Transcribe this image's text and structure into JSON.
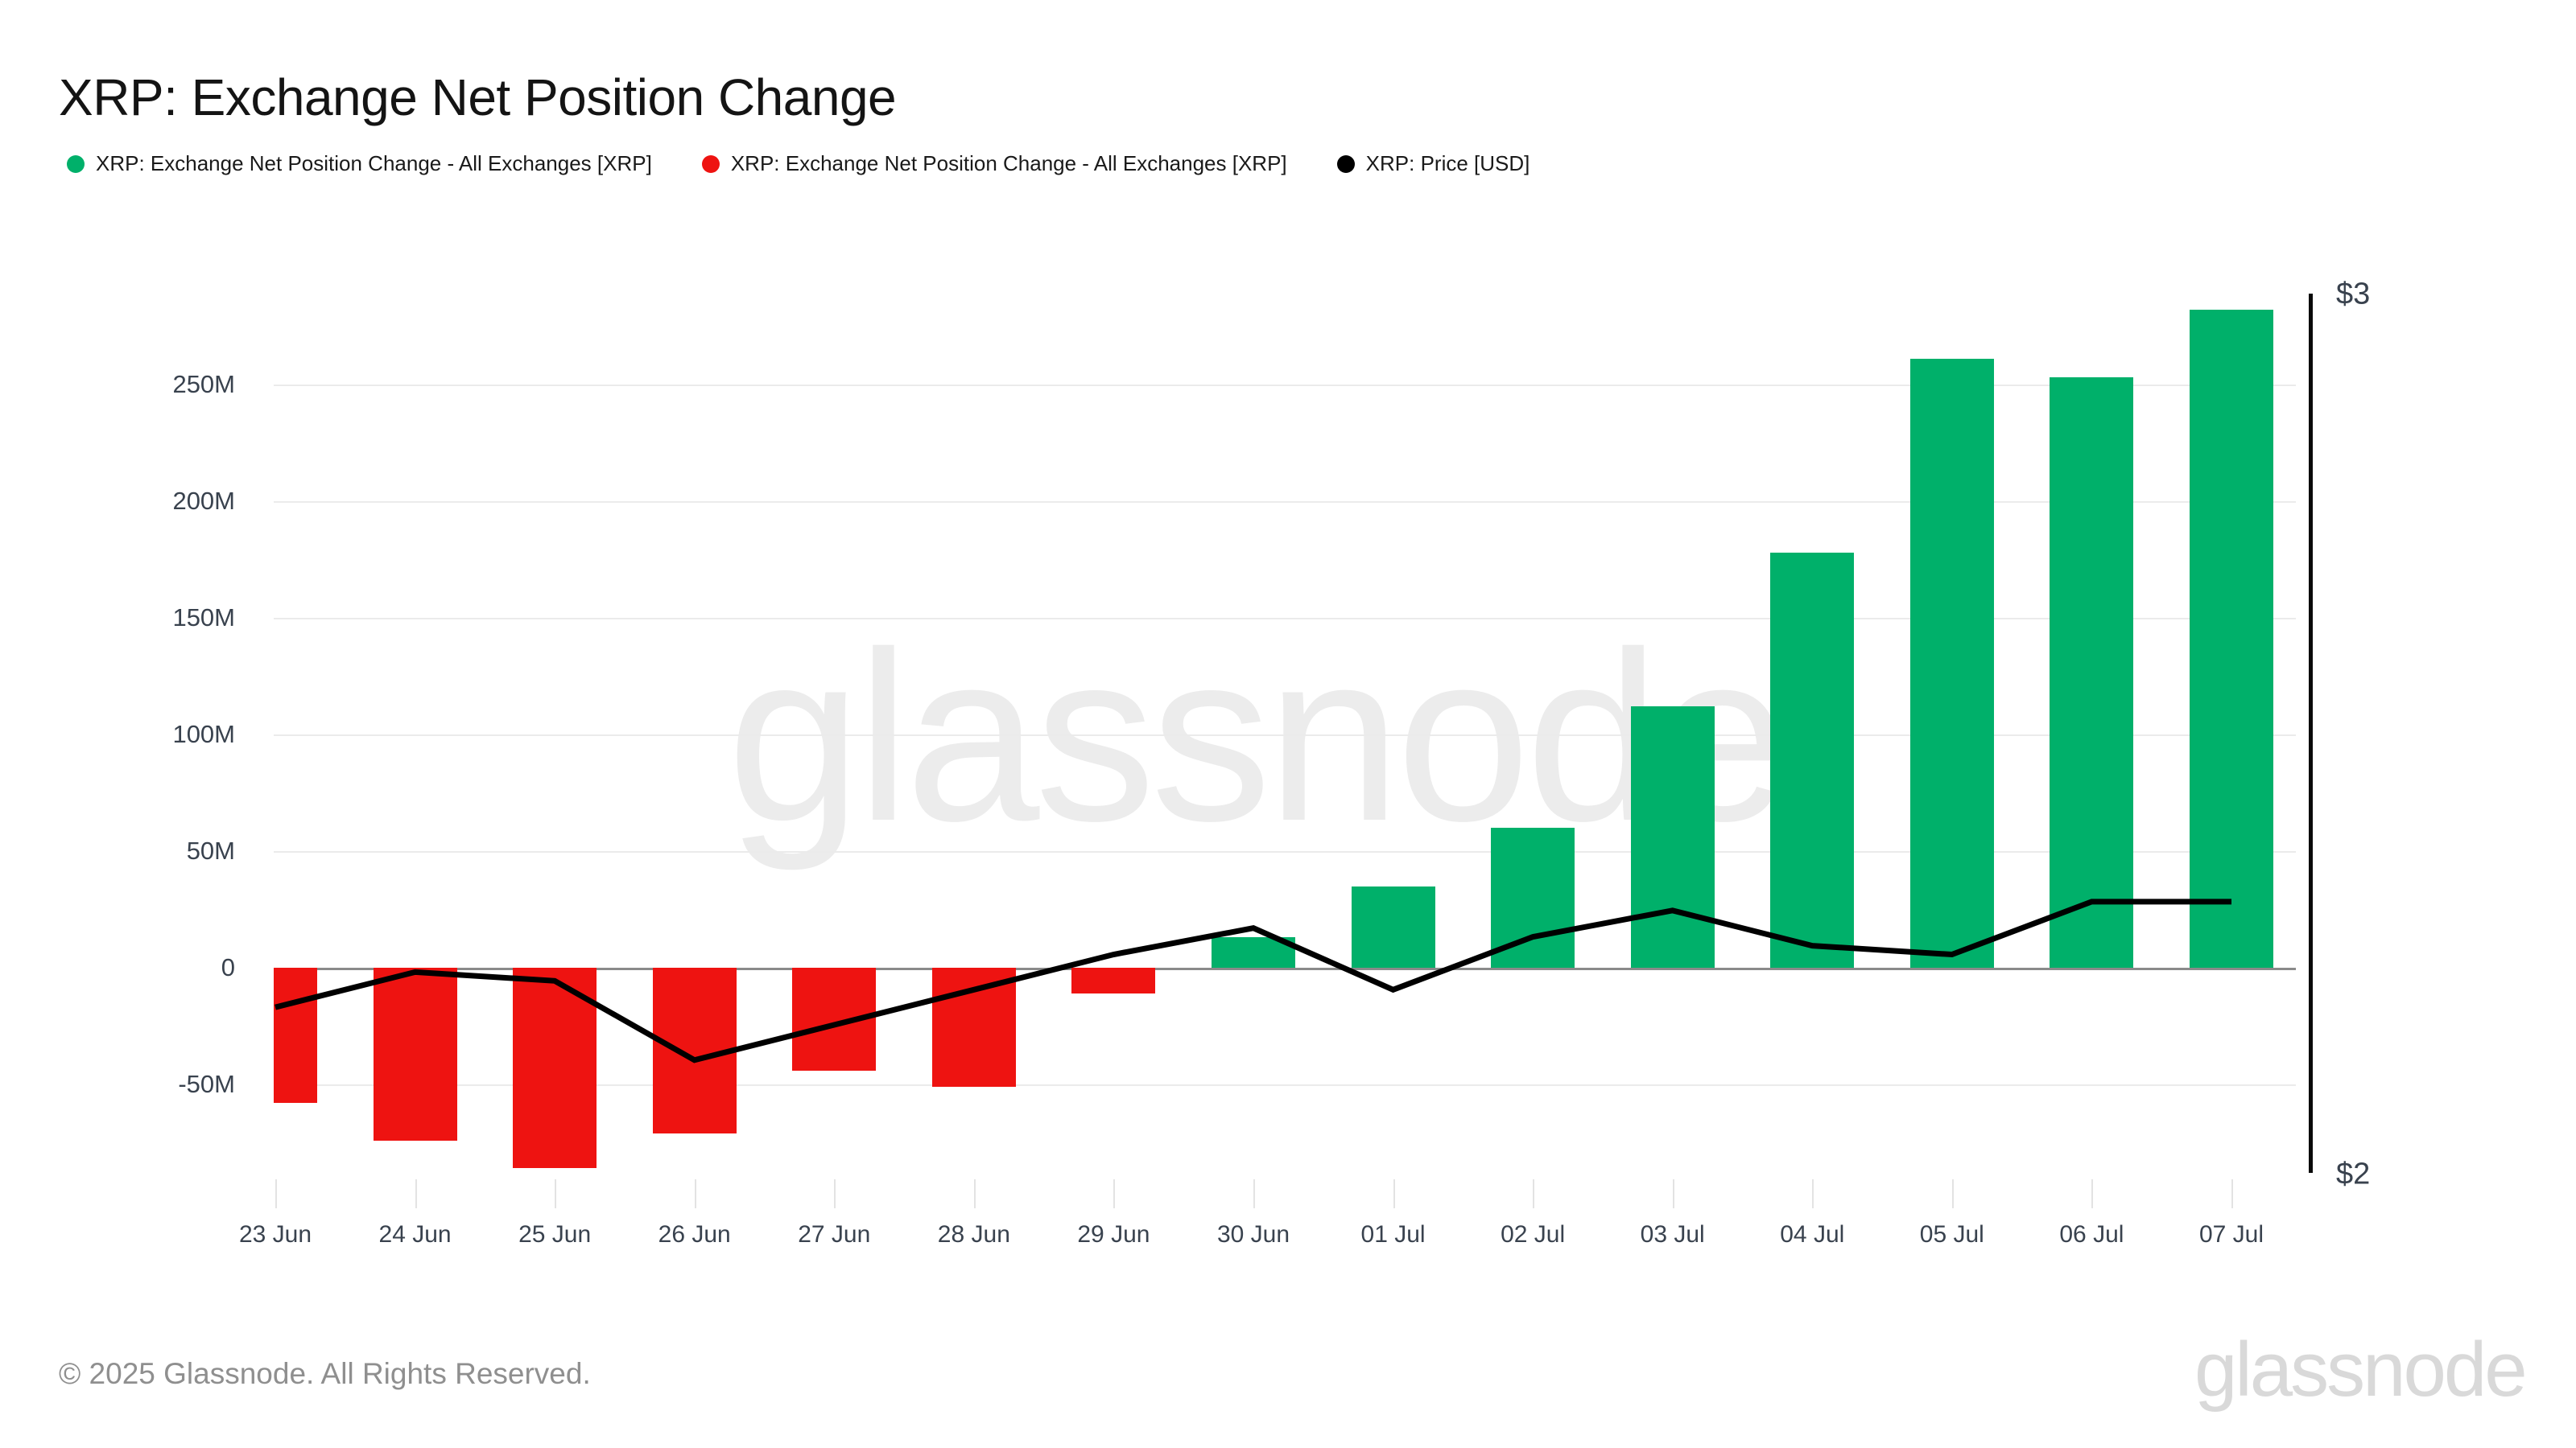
{
  "title": "XRP: Exchange Net Position Change",
  "legend": {
    "items": [
      {
        "label": "XRP: Exchange Net Position Change - All Exchanges [XRP]",
        "color": "#00b06a"
      },
      {
        "label": "XRP: Exchange Net Position Change - All Exchanges [XRP]",
        "color": "#ee1311"
      },
      {
        "label": "XRP: Price [USD]",
        "color": "#000000"
      }
    ]
  },
  "watermark": "glassnode",
  "footer": {
    "copyright": "© 2025 Glassnode. All Rights Reserved.",
    "logo": "glassnode"
  },
  "colors": {
    "positive_bar": "#00b06a",
    "negative_bar": "#ee1311",
    "price_line": "#000000",
    "gridline": "#ebebeb",
    "zero_line": "#8a8a8a",
    "axis_text": "#39424e",
    "background": "#ffffff"
  },
  "chart_data": {
    "type": "bar",
    "title": "XRP: Exchange Net Position Change",
    "categories": [
      "23 Jun",
      "24 Jun",
      "25 Jun",
      "26 Jun",
      "27 Jun",
      "28 Jun",
      "29 Jun",
      "30 Jun",
      "01 Jul",
      "02 Jul",
      "03 Jul",
      "04 Jul",
      "05 Jul",
      "06 Jul",
      "07 Jul"
    ],
    "series": [
      {
        "name": "XRP: Exchange Net Position Change - All Exchanges [XRP]",
        "type": "bar",
        "unit": "XRP (millions)",
        "values": [
          -58,
          -74,
          -86,
          -71,
          -44,
          -51,
          -11,
          13,
          35,
          60,
          112,
          178,
          261,
          253,
          282
        ],
        "positive_color": "#00b06a",
        "negative_color": "#ee1311"
      },
      {
        "name": "XRP: Price [USD]",
        "type": "line",
        "unit": "USD",
        "values": [
          2.19,
          2.23,
          2.22,
          2.13,
          2.17,
          2.21,
          2.25,
          2.28,
          2.21,
          2.27,
          2.3,
          2.26,
          2.25,
          2.31,
          2.31
        ],
        "color": "#000000"
      }
    ],
    "left_axis": {
      "tick_labels": [
        "250M",
        "200M",
        "150M",
        "100M",
        "50M",
        "0",
        "-50M"
      ],
      "tick_values": [
        250,
        200,
        150,
        100,
        50,
        0,
        -50
      ],
      "unit": "M (XRP)",
      "ylim": [
        -110,
        300
      ]
    },
    "right_axis": {
      "tick_labels": [
        "$3",
        "$2"
      ],
      "tick_values": [
        3,
        2
      ],
      "min": 2,
      "max": 3
    },
    "grid": true,
    "legend_position": "top-left"
  }
}
